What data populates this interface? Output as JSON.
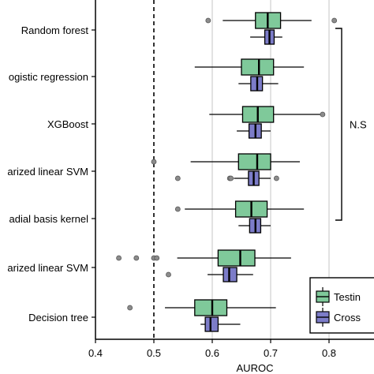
{
  "chart_data": {
    "type": "boxplot",
    "title": "",
    "xlabel": "AUROC",
    "ylabel": "",
    "xlim": [
      0.4,
      0.87
    ],
    "xticks": [
      "0.4",
      "0.5",
      "0.6",
      "0.7",
      "0.8"
    ],
    "xtick_values": [
      0.4,
      0.5,
      0.6,
      0.7,
      0.8
    ],
    "grid": "vertical at 0.6, 0.7, 0.8",
    "reference_line": {
      "x": 0.5,
      "style": "dashed"
    },
    "colors": {
      "testing": "#7fc99a",
      "cross": "#7c7cc8",
      "outlier": "#8c8c8c",
      "grid": "#d9d9d9"
    },
    "legend": {
      "placement": "bottom-right",
      "entries": [
        {
          "key": "testing",
          "label": "Testin"
        },
        {
          "key": "cross",
          "label": "Cross"
        }
      ]
    },
    "bracket": {
      "label": "N.S",
      "from_category": 0,
      "to_category": 4
    },
    "categories": [
      "Random forest",
      "ogistic regression",
      "XGBoost",
      "arized linear SVM",
      "adial basis kernel",
      "arized linear SVM",
      "Decision tree"
    ],
    "series": [
      {
        "key": "testing",
        "boxes": [
          {
            "whislo": 0.618,
            "q1": 0.674,
            "med": 0.695,
            "q3": 0.717,
            "whishi": 0.77,
            "fliers": [
              0.593,
              0.809
            ]
          },
          {
            "whislo": 0.57,
            "q1": 0.65,
            "med": 0.68,
            "q3": 0.705,
            "whishi": 0.757,
            "fliers": []
          },
          {
            "whislo": 0.595,
            "q1": 0.652,
            "med": 0.678,
            "q3": 0.705,
            "whishi": 0.79,
            "fliers": [
              0.789
            ]
          },
          {
            "whislo": 0.563,
            "q1": 0.645,
            "med": 0.677,
            "q3": 0.7,
            "whishi": 0.75,
            "fliers": [
              0.5
            ]
          },
          {
            "whislo": 0.553,
            "q1": 0.64,
            "med": 0.667,
            "q3": 0.694,
            "whishi": 0.757,
            "fliers": [
              0.541
            ]
          },
          {
            "whislo": 0.54,
            "q1": 0.61,
            "med": 0.648,
            "q3": 0.673,
            "whishi": 0.735,
            "fliers": [
              0.44,
              0.47,
              0.5,
              0.505
            ]
          },
          {
            "whislo": 0.519,
            "q1": 0.57,
            "med": 0.6,
            "q3": 0.625,
            "whishi": 0.709,
            "fliers": [
              0.459
            ]
          }
        ]
      },
      {
        "key": "cross",
        "boxes": [
          {
            "whislo": 0.665,
            "q1": 0.69,
            "med": 0.698,
            "q3": 0.706,
            "whishi": 0.72,
            "fliers": []
          },
          {
            "whislo": 0.645,
            "q1": 0.666,
            "med": 0.677,
            "q3": 0.686,
            "whishi": 0.713,
            "fliers": []
          },
          {
            "whislo": 0.642,
            "q1": 0.663,
            "med": 0.674,
            "q3": 0.684,
            "whishi": 0.7,
            "fliers": []
          },
          {
            "whislo": 0.637,
            "q1": 0.662,
            "med": 0.671,
            "q3": 0.68,
            "whishi": 0.7,
            "fliers": [
              0.63,
              0.632,
              0.541,
              0.71
            ]
          },
          {
            "whislo": 0.645,
            "q1": 0.664,
            "med": 0.674,
            "q3": 0.683,
            "whishi": 0.7,
            "fliers": []
          },
          {
            "whislo": 0.592,
            "q1": 0.619,
            "med": 0.629,
            "q3": 0.642,
            "whishi": 0.67,
            "fliers": [
              0.525
            ]
          },
          {
            "whislo": 0.58,
            "q1": 0.588,
            "med": 0.597,
            "q3": 0.61,
            "whishi": 0.648,
            "fliers": []
          }
        ]
      }
    ]
  }
}
